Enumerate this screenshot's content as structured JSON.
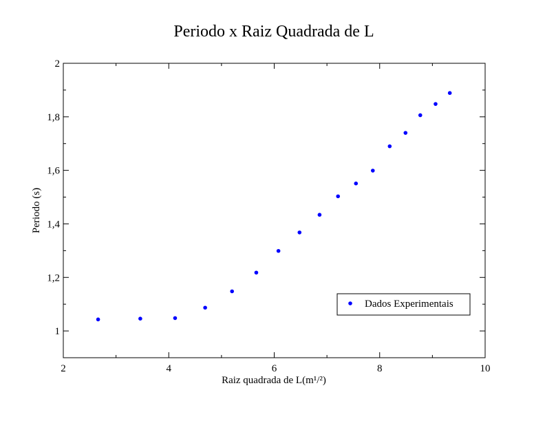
{
  "chart_data": {
    "type": "scatter",
    "title": "Periodo x Raiz Quadrada de L",
    "xlabel": "Raiz quadrada de L(m¹/²)",
    "ylabel": "Periodo (s)",
    "xlim": [
      2,
      10
    ],
    "ylim": [
      0.9,
      2.0
    ],
    "x_ticks": [
      "2",
      "4",
      "6",
      "8",
      "10"
    ],
    "y_ticks": [
      "1",
      "1,2",
      "1,4",
      "1,6",
      "1,8",
      "2"
    ],
    "grid": false,
    "legend_position": "lower-right",
    "series": [
      {
        "name": "Dados Experimentais",
        "color": "#0000ff",
        "marker": "circle",
        "points": [
          {
            "x": 2.66,
            "y": 1.043
          },
          {
            "x": 3.46,
            "y": 1.046
          },
          {
            "x": 4.12,
            "y": 1.048
          },
          {
            "x": 4.69,
            "y": 1.087
          },
          {
            "x": 5.2,
            "y": 1.148
          },
          {
            "x": 5.66,
            "y": 1.218
          },
          {
            "x": 6.08,
            "y": 1.299
          },
          {
            "x": 6.48,
            "y": 1.368
          },
          {
            "x": 6.86,
            "y": 1.434
          },
          {
            "x": 7.21,
            "y": 1.503
          },
          {
            "x": 7.55,
            "y": 1.551
          },
          {
            "x": 7.87,
            "y": 1.599
          },
          {
            "x": 8.19,
            "y": 1.69
          },
          {
            "x": 8.49,
            "y": 1.74
          },
          {
            "x": 8.77,
            "y": 1.806
          },
          {
            "x": 9.06,
            "y": 1.848
          },
          {
            "x": 9.33,
            "y": 1.889
          }
        ]
      }
    ]
  }
}
